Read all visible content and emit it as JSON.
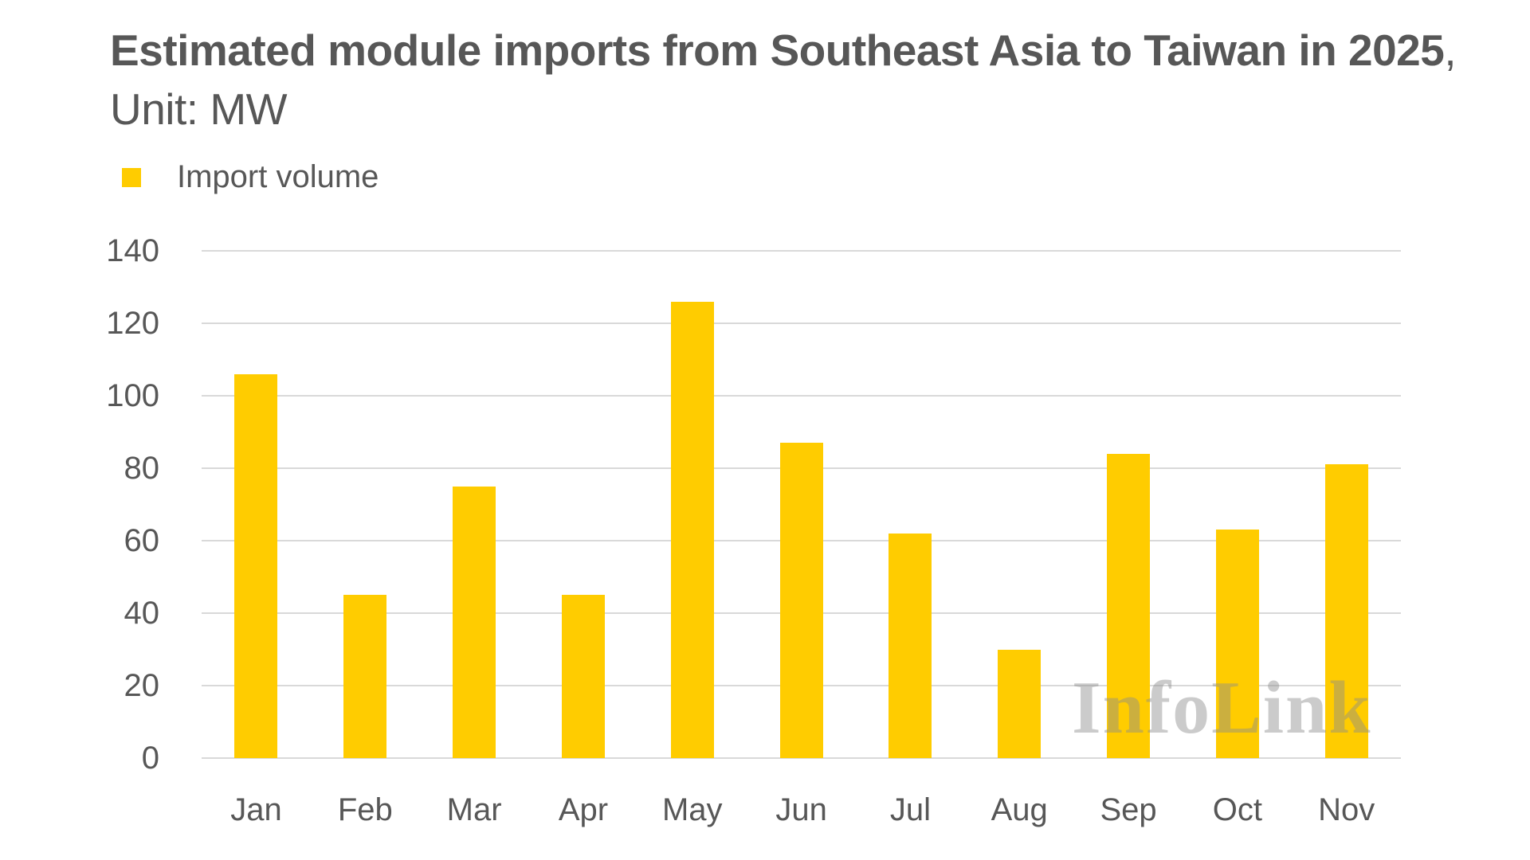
{
  "title": {
    "bold": "Estimated module imports from Southeast Asia to Taiwan in 2025",
    "light": ", Unit: MW"
  },
  "legend": {
    "label": "Import volume",
    "color": "#FFCC00"
  },
  "watermark": "InfoLink",
  "colors": {
    "bar": "#FFCC00",
    "grid": "#D9D9D9",
    "text": "#575757"
  },
  "chart_data": {
    "type": "bar",
    "title": "Estimated module imports from Southeast Asia to Taiwan in 2025, Unit: MW",
    "xlabel": "",
    "ylabel": "",
    "categories": [
      "Jan",
      "Feb",
      "Mar",
      "Apr",
      "May",
      "Jun",
      "Jul",
      "Aug",
      "Sep",
      "Oct",
      "Nov"
    ],
    "series": [
      {
        "name": "Import volume",
        "values": [
          106,
          45,
          75,
          45,
          126,
          87,
          62,
          30,
          84,
          63,
          81
        ]
      }
    ],
    "ylim": [
      0,
      140
    ],
    "yticks": [
      0,
      20,
      40,
      60,
      80,
      100,
      120,
      140
    ],
    "grid": true,
    "legend_position": "top-left"
  }
}
